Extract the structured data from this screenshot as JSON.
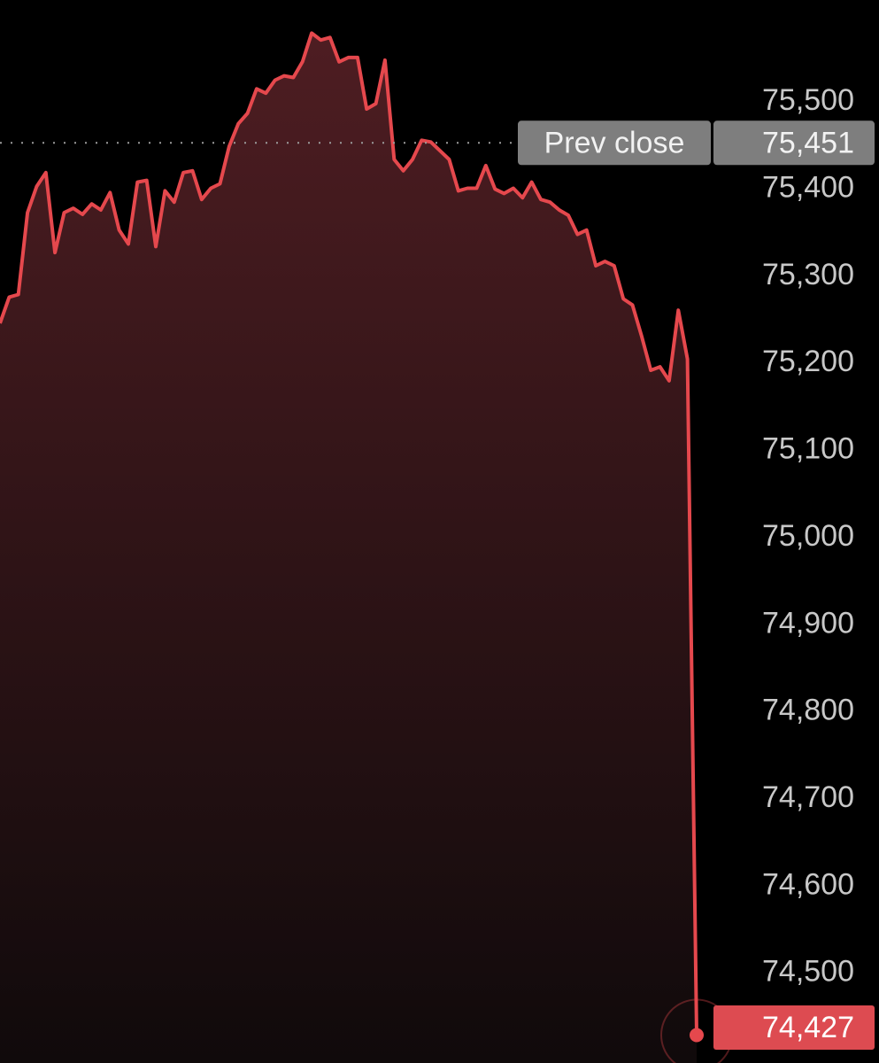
{
  "chart_data": {
    "type": "line",
    "color": "#e5484d",
    "ylim": [
      74395,
      75615
    ],
    "yticks": [
      {
        "value": 75500,
        "label": "75,500"
      },
      {
        "value": 75400,
        "label": "75,400"
      },
      {
        "value": 75300,
        "label": "75,300"
      },
      {
        "value": 75200,
        "label": "75,200"
      },
      {
        "value": 75100,
        "label": "75,100"
      },
      {
        "value": 75000,
        "label": "75,000"
      },
      {
        "value": 74900,
        "label": "74,900"
      },
      {
        "value": 74800,
        "label": "74,800"
      },
      {
        "value": 74700,
        "label": "74,700"
      },
      {
        "value": 74600,
        "label": "74,600"
      },
      {
        "value": 74500,
        "label": "74,500"
      }
    ],
    "grid": false,
    "reference_line": {
      "name": "Prev close",
      "value": 75451,
      "value_label": "75,451"
    },
    "values": [
      75244,
      75274,
      75277,
      75371,
      75401,
      75417,
      75325,
      75371,
      75376,
      75369,
      75381,
      75374,
      75394,
      75351,
      75335,
      75406,
      75408,
      75332,
      75396,
      75383,
      75417,
      75419,
      75386,
      75399,
      75404,
      75447,
      75473,
      75485,
      75513,
      75508,
      75523,
      75528,
      75526,
      75544,
      75577,
      75569,
      75572,
      75544,
      75549,
      75549,
      75490,
      75496,
      75546,
      75432,
      75419,
      75432,
      75454,
      75452,
      75442,
      75432,
      75396,
      75399,
      75399,
      75425,
      75398,
      75393,
      75399,
      75388,
      75406,
      75386,
      75383,
      75374,
      75368,
      75346,
      75351,
      75310,
      75315,
      75310,
      75272,
      75265,
      75229,
      75190,
      75194,
      75178,
      75259,
      75203,
      74427
    ],
    "value_labels": [
      null,
      null,
      null,
      null,
      null,
      null,
      null,
      null,
      null,
      null,
      null,
      null,
      null,
      null,
      null,
      null,
      null,
      null,
      null,
      null,
      null,
      null,
      null,
      null,
      null,
      null,
      null,
      null,
      null,
      null,
      null,
      null,
      null,
      null,
      null,
      null,
      null,
      null,
      null,
      null,
      null,
      null,
      null,
      null,
      null,
      null,
      null,
      null,
      null,
      null,
      null,
      null,
      null,
      null,
      null,
      null,
      null,
      null,
      null,
      null,
      null,
      null,
      null,
      null,
      null,
      null,
      null,
      null,
      null,
      null,
      null,
      null,
      null,
      null,
      null,
      null,
      "74,427"
    ]
  }
}
